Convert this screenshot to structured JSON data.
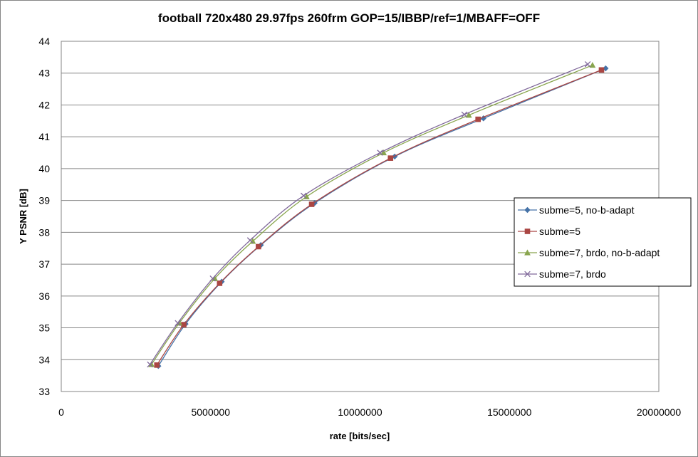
{
  "chart_data": {
    "type": "line",
    "title": "football 720x480 29.97fps 260frm GOP=15/IBBP/ref=1/MBAFF=OFF",
    "xlabel": "rate [bits/sec]",
    "ylabel": "Y PSNR [dB]",
    "xlim": [
      0,
      20000000
    ],
    "ylim": [
      33,
      44
    ],
    "xticks": [
      "0",
      "5000000",
      "10000000",
      "15000000",
      "20000000"
    ],
    "yticks": [
      "33",
      "34",
      "35",
      "36",
      "37",
      "38",
      "39",
      "40",
      "41",
      "42",
      "43",
      "44"
    ],
    "grid": "horizontal",
    "legend_position": "right",
    "series": [
      {
        "name": "subme=5, no-b-adapt",
        "color": "#4572A7",
        "marker": "diamond",
        "x": [
          3250000,
          4160000,
          5370000,
          6680000,
          8480000,
          11160000,
          14130000,
          18220000
        ],
        "y": [
          33.8,
          35.12,
          36.45,
          37.6,
          38.92,
          40.38,
          41.58,
          43.15
        ]
      },
      {
        "name": "subme=5",
        "color": "#AA4643",
        "marker": "square",
        "x": [
          3200000,
          4100000,
          5300000,
          6600000,
          8380000,
          11020000,
          13950000,
          18080000
        ],
        "y": [
          33.83,
          35.1,
          36.4,
          37.55,
          38.88,
          40.33,
          41.55,
          43.1
        ]
      },
      {
        "name": "subme=7, brdo, no-b-adapt",
        "color": "#89A54E",
        "marker": "triangle",
        "x": [
          3020000,
          3950000,
          5140000,
          6410000,
          8210000,
          10790000,
          13640000,
          17780000
        ],
        "y": [
          33.85,
          35.15,
          36.55,
          37.72,
          39.12,
          40.5,
          41.68,
          43.25
        ]
      },
      {
        "name": "subme=7, brdo",
        "color": "#80699B",
        "marker": "x",
        "x": [
          2970000,
          3900000,
          5070000,
          6320000,
          8110000,
          10670000,
          13490000,
          17620000
        ],
        "y": [
          33.85,
          35.15,
          36.55,
          37.75,
          39.15,
          40.5,
          41.7,
          43.28
        ]
      }
    ]
  }
}
